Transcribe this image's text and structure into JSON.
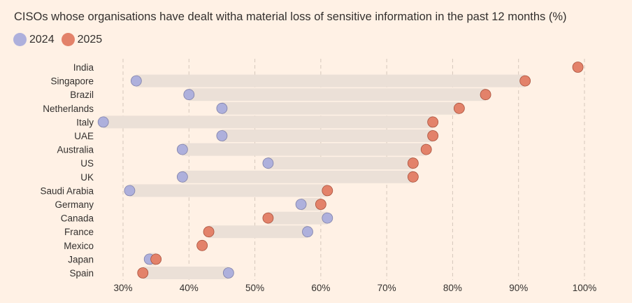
{
  "chart_data": {
    "type": "dumbbell",
    "title": "CISOs whose organisations have dealt witha material loss of sensitive information in the past 12 months (%)",
    "legend_placement": "top-left",
    "grid": true,
    "x_ticks": [
      "30%",
      "40%",
      "50%",
      "60%",
      "70%",
      "80%",
      "90%",
      "100%"
    ],
    "x_tick_values": [
      30,
      40,
      50,
      60,
      70,
      80,
      90,
      100
    ],
    "xlim": [
      25,
      101
    ],
    "categories": [
      "India",
      "Singapore",
      "Brazil",
      "Netherlands",
      "Italy",
      "UAE",
      "Australia",
      "US",
      "UK",
      "Saudi Arabia",
      "Germany",
      "Canada",
      "France",
      "Mexico",
      "Japan",
      "Spain"
    ],
    "series": [
      {
        "name": "2024",
        "color": "#aeb0dc",
        "values": [
          null,
          32,
          40,
          45,
          27,
          45,
          39,
          52,
          39,
          31,
          57,
          61,
          58,
          null,
          34,
          46
        ]
      },
      {
        "name": "2025",
        "color": "#e3826a",
        "values": [
          99,
          91,
          85,
          81,
          77,
          77,
          76,
          74,
          74,
          61,
          60,
          52,
          43,
          42,
          35,
          33
        ]
      }
    ]
  }
}
